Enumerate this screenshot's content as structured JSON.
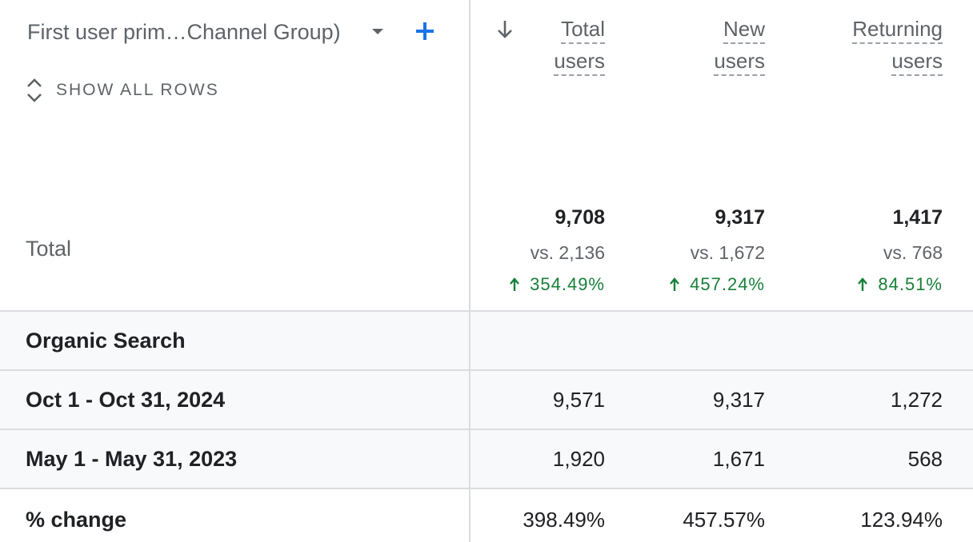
{
  "header": {
    "dimension_label": "First user prim…Channel Group)",
    "show_all_rows_label": "SHOW ALL ROWS",
    "columns": [
      {
        "line1": "Total",
        "line2": "users"
      },
      {
        "line1": "New",
        "line2": "users"
      },
      {
        "line1": "Returning",
        "line2": "users"
      }
    ]
  },
  "totals": {
    "label": "Total",
    "values": [
      {
        "value": "9,708",
        "compare": "vs. 2,136",
        "change": "354.49%"
      },
      {
        "value": "9,317",
        "compare": "vs. 1,672",
        "change": "457.24%"
      },
      {
        "value": "1,417",
        "compare": "vs. 768",
        "change": "84.51%"
      }
    ]
  },
  "rows": [
    {
      "label": "Organic Search",
      "values": [
        "",
        "",
        ""
      ]
    },
    {
      "label": "Oct 1 - Oct 31, 2024",
      "values": [
        "9,571",
        "9,317",
        "1,272"
      ]
    },
    {
      "label": "May 1 - May 31, 2023",
      "values": [
        "1,920",
        "1,671",
        "568"
      ]
    },
    {
      "label": "% change",
      "values": [
        "398.49%",
        "457.57%",
        "123.94%"
      ]
    }
  ],
  "colors": {
    "accent": "#1a73e8",
    "positive": "#188038",
    "divider": "#dadce0",
    "row_bg": "#f8f9fa"
  },
  "icons": {
    "add": "plus-icon",
    "dropdown": "caret-down-icon",
    "expand": "unfold-icon",
    "sort": "arrow-down-icon",
    "trend": "arrow-up-icon"
  }
}
